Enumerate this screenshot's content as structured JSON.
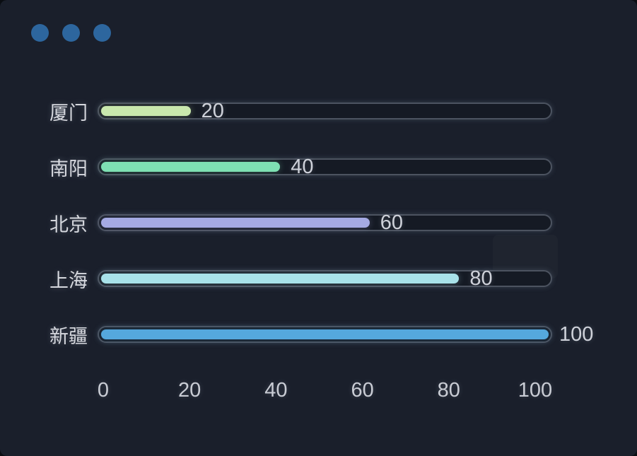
{
  "window": {
    "controls": {
      "dot_count": 3
    }
  },
  "colors": {
    "panel-bg": "#1a1f2b",
    "dot": "#2d669e",
    "label-text": "#d6d8de",
    "value-text": "#ced1d9",
    "axis-text": "#c9ccd4",
    "track-border": "#4c5360",
    "track-fill": "#151a24"
  },
  "chart_data": {
    "type": "bar",
    "orientation": "horizontal",
    "categories": [
      "厦门",
      "南阳",
      "北京",
      "上海",
      "新疆"
    ],
    "values": [
      20,
      40,
      60,
      80,
      100
    ],
    "value_labels": [
      "20",
      "40",
      "60",
      "80",
      "100"
    ],
    "bar_colors": [
      "#c9e8ad",
      "#7ee0b3",
      "#a5aae3",
      "#a8e2e9",
      "#55a8dd"
    ],
    "x_ticks": [
      "0",
      "20",
      "40",
      "60",
      "80",
      "100"
    ],
    "xlim": [
      0,
      100
    ],
    "title": "",
    "xlabel": "",
    "ylabel": "",
    "grid": false,
    "legend": false
  }
}
